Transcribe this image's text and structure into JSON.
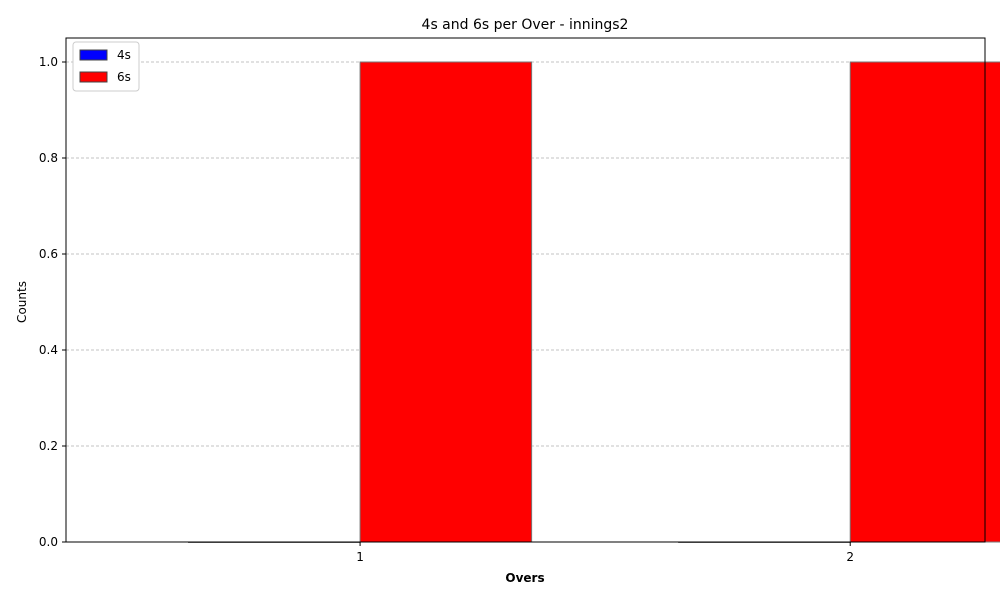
{
  "chart_data": {
    "type": "bar",
    "title": "4s and 6s per Over - innings2",
    "xlabel": "Overs",
    "ylabel": "Counts",
    "categories": [
      "1",
      "2"
    ],
    "ylim": [
      0,
      1.05
    ],
    "yticks": [
      0.0,
      0.2,
      0.4,
      0.6,
      0.8,
      1.0
    ],
    "ytick_labels": [
      "0.0",
      "0.2",
      "0.4",
      "0.6",
      "0.8",
      "1.0"
    ],
    "grid": true,
    "legend_position": "top-left",
    "series": [
      {
        "name": "4s",
        "color": "#0000ff",
        "values": [
          0,
          0
        ]
      },
      {
        "name": "6s",
        "color": "#ff0000",
        "values": [
          1,
          1
        ]
      }
    ]
  }
}
